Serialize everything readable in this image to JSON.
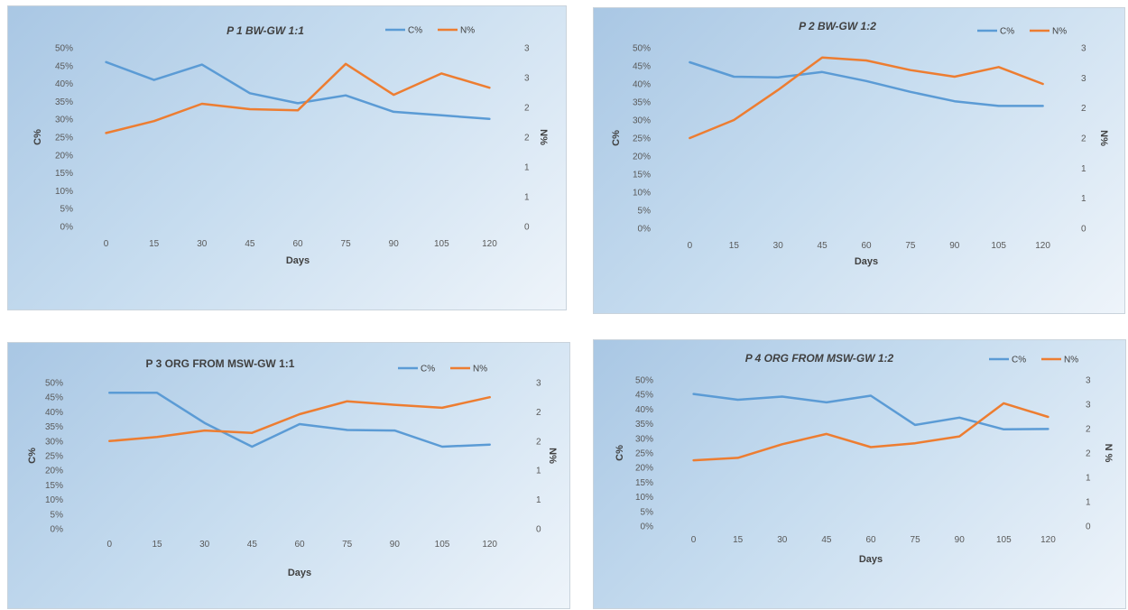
{
  "colors": {
    "c": "#5b9bd5",
    "n": "#ed7d31"
  },
  "chart_data": [
    {
      "type": "line",
      "title": "P 1 BW-GW 1:1",
      "title_italic": true,
      "xlabel": "Days",
      "ylabel": "C%",
      "y2label": "N%",
      "categories": [
        "0",
        "15",
        "30",
        "45",
        "60",
        "75",
        "90",
        "105",
        "120"
      ],
      "y_ticks": [
        "0%",
        "5%",
        "10%",
        "15%",
        "20%",
        "25%",
        "30%",
        "35%",
        "40%",
        "45%",
        "50%"
      ],
      "y2_ticks": [
        "0",
        "1",
        "1",
        "2",
        "2",
        "3",
        "3"
      ],
      "ylim": [
        0,
        50
      ],
      "y2lim": [
        0,
        3
      ],
      "legend_position": "top-right",
      "series": [
        {
          "name": "C%",
          "axis": "left",
          "values": [
            46,
            41,
            45.3,
            37.3,
            34.5,
            36.7,
            32.1,
            31.1,
            30.1
          ]
        },
        {
          "name": "N%",
          "axis": "right",
          "values": [
            1.57,
            1.77,
            2.06,
            1.97,
            1.95,
            2.73,
            2.21,
            2.57,
            2.33
          ]
        }
      ]
    },
    {
      "type": "line",
      "title": "P 2 BW-GW 1:2",
      "title_italic": true,
      "xlabel": "Days",
      "ylabel": "C%",
      "y2label": "N%",
      "categories": [
        "0",
        "15",
        "30",
        "45",
        "60",
        "75",
        "90",
        "105",
        "120"
      ],
      "y_ticks": [
        "0%",
        "5%",
        "10%",
        "15%",
        "20%",
        "25%",
        "30%",
        "35%",
        "40%",
        "45%",
        "50%"
      ],
      "y2_ticks": [
        "0",
        "1",
        "1",
        "2",
        "2",
        "3",
        "3"
      ],
      "ylim": [
        0,
        50
      ],
      "y2lim": [
        0,
        3
      ],
      "legend_position": "top-right",
      "series": [
        {
          "name": "C%",
          "axis": "left",
          "values": [
            46,
            42,
            41.8,
            43.3,
            40.8,
            37.8,
            35.2,
            33.9,
            33.9
          ]
        },
        {
          "name": "N%",
          "axis": "right",
          "values": [
            1.5,
            1.8,
            2.3,
            2.84,
            2.79,
            2.63,
            2.52,
            2.68,
            2.4
          ]
        }
      ]
    },
    {
      "type": "line",
      "title": "P 3 ORG FROM MSW-GW 1:1",
      "title_italic": false,
      "xlabel": "Days",
      "ylabel": "C%",
      "y2label": "N%",
      "categories": [
        "0",
        "15",
        "30",
        "45",
        "60",
        "75",
        "90",
        "105",
        "120"
      ],
      "y_ticks": [
        "0%",
        "5%",
        "10%",
        "15%",
        "20%",
        "25%",
        "30%",
        "35%",
        "40%",
        "45%",
        "50%"
      ],
      "y2_ticks": [
        "0",
        "1",
        "1",
        "2",
        "2",
        "3"
      ],
      "ylim": [
        0,
        50
      ],
      "y2lim": [
        0,
        2.5
      ],
      "legend_position": "top-right",
      "series": [
        {
          "name": "C%",
          "axis": "left",
          "values": [
            46.5,
            46.5,
            36.2,
            28.1,
            35.8,
            33.8,
            33.6,
            28.1,
            28.8
          ]
        },
        {
          "name": "N%",
          "axis": "right",
          "values": [
            1.5,
            1.57,
            1.68,
            1.64,
            1.96,
            2.18,
            2.12,
            2.07,
            2.25
          ]
        }
      ]
    },
    {
      "type": "line",
      "title": "P 4 ORG FROM MSW-GW 1:2",
      "title_italic": true,
      "xlabel": "Days",
      "ylabel": "C%",
      "y2label": "N %",
      "categories": [
        "0",
        "15",
        "30",
        "45",
        "60",
        "75",
        "90",
        "105",
        "120"
      ],
      "y_ticks": [
        "0%",
        "5%",
        "10%",
        "15%",
        "20%",
        "25%",
        "30%",
        "35%",
        "40%",
        "45%",
        "50%"
      ],
      "y2_ticks": [
        "0",
        "1",
        "1",
        "2",
        "2",
        "3",
        "3"
      ],
      "ylim": [
        0,
        50
      ],
      "y2lim": [
        0,
        3
      ],
      "legend_position": "top-right",
      "series": [
        {
          "name": "C%",
          "axis": "left",
          "values": [
            45.2,
            43.2,
            44.3,
            42.3,
            44.6,
            34.6,
            37.1,
            33.1,
            33.2
          ]
        },
        {
          "name": "N%",
          "axis": "right",
          "values": [
            1.35,
            1.4,
            1.68,
            1.89,
            1.62,
            1.7,
            1.84,
            2.52,
            2.24
          ]
        }
      ]
    }
  ]
}
